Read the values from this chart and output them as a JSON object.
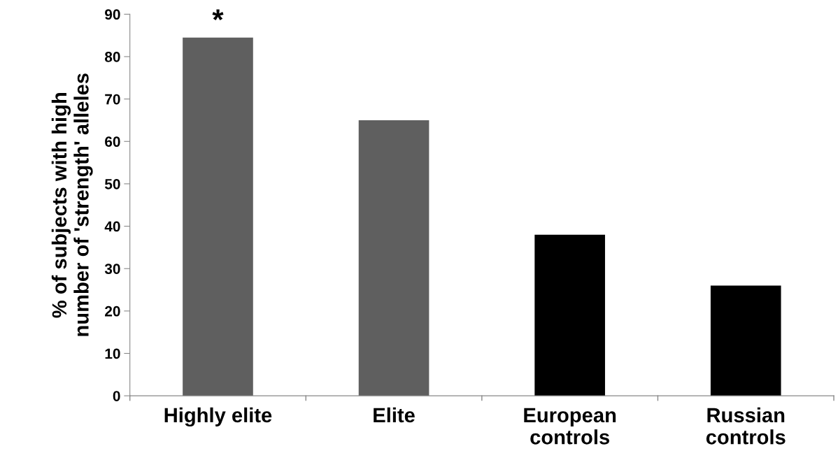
{
  "chart_data": {
    "type": "bar",
    "ylabel": "% of subjects with high\nnumber of 'strength' alleles",
    "categories": [
      "Highly elite",
      "Elite",
      "European\ncontrols",
      "Russian\ncontrols"
    ],
    "values": [
      84.5,
      65,
      38,
      26
    ],
    "colors": [
      "#5f5f5f",
      "#5f5f5f",
      "#000000",
      "#000000"
    ],
    "ylim": [
      0,
      90
    ],
    "yticks": [
      0,
      10,
      20,
      30,
      40,
      50,
      60,
      70,
      80,
      90
    ],
    "grid": false,
    "annotations": [
      {
        "text": "*",
        "x": "Highly elite",
        "y": 84.5
      }
    ]
  }
}
